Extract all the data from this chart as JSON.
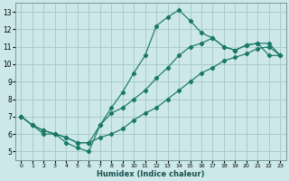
{
  "xlabel": "Humidex (Indice chaleur)",
  "bg_color": "#cce8e8",
  "grid_color": "#aacccc",
  "line_color": "#1a7868",
  "xlim": [
    -0.5,
    23.5
  ],
  "ylim": [
    4.5,
    13.5
  ],
  "xticks": [
    0,
    1,
    2,
    3,
    4,
    5,
    6,
    7,
    8,
    9,
    10,
    11,
    12,
    13,
    14,
    15,
    16,
    17,
    18,
    19,
    20,
    21,
    22,
    23
  ],
  "yticks": [
    5,
    6,
    7,
    8,
    9,
    10,
    11,
    12,
    13
  ],
  "line1_y": [
    7.0,
    6.5,
    6.0,
    6.0,
    5.5,
    5.2,
    5.0,
    6.5,
    7.5,
    8.4,
    9.5,
    10.5,
    12.2,
    12.7,
    13.1,
    12.5,
    11.8,
    11.5,
    11.0,
    10.8,
    11.1,
    11.2,
    10.5,
    10.5
  ],
  "line2_y": [
    7.0,
    6.5,
    6.2,
    6.0,
    5.8,
    5.5,
    5.5,
    6.5,
    7.2,
    7.5,
    8.0,
    8.5,
    9.2,
    9.8,
    10.5,
    11.0,
    11.2,
    11.5,
    11.0,
    10.8,
    11.1,
    11.2,
    11.2,
    10.5
  ],
  "line3_y": [
    7.0,
    6.5,
    6.2,
    6.0,
    5.8,
    5.5,
    5.5,
    5.8,
    6.0,
    6.3,
    6.8,
    7.2,
    7.5,
    8.0,
    8.5,
    9.0,
    9.5,
    9.8,
    10.2,
    10.4,
    10.6,
    10.9,
    11.0,
    10.5
  ]
}
